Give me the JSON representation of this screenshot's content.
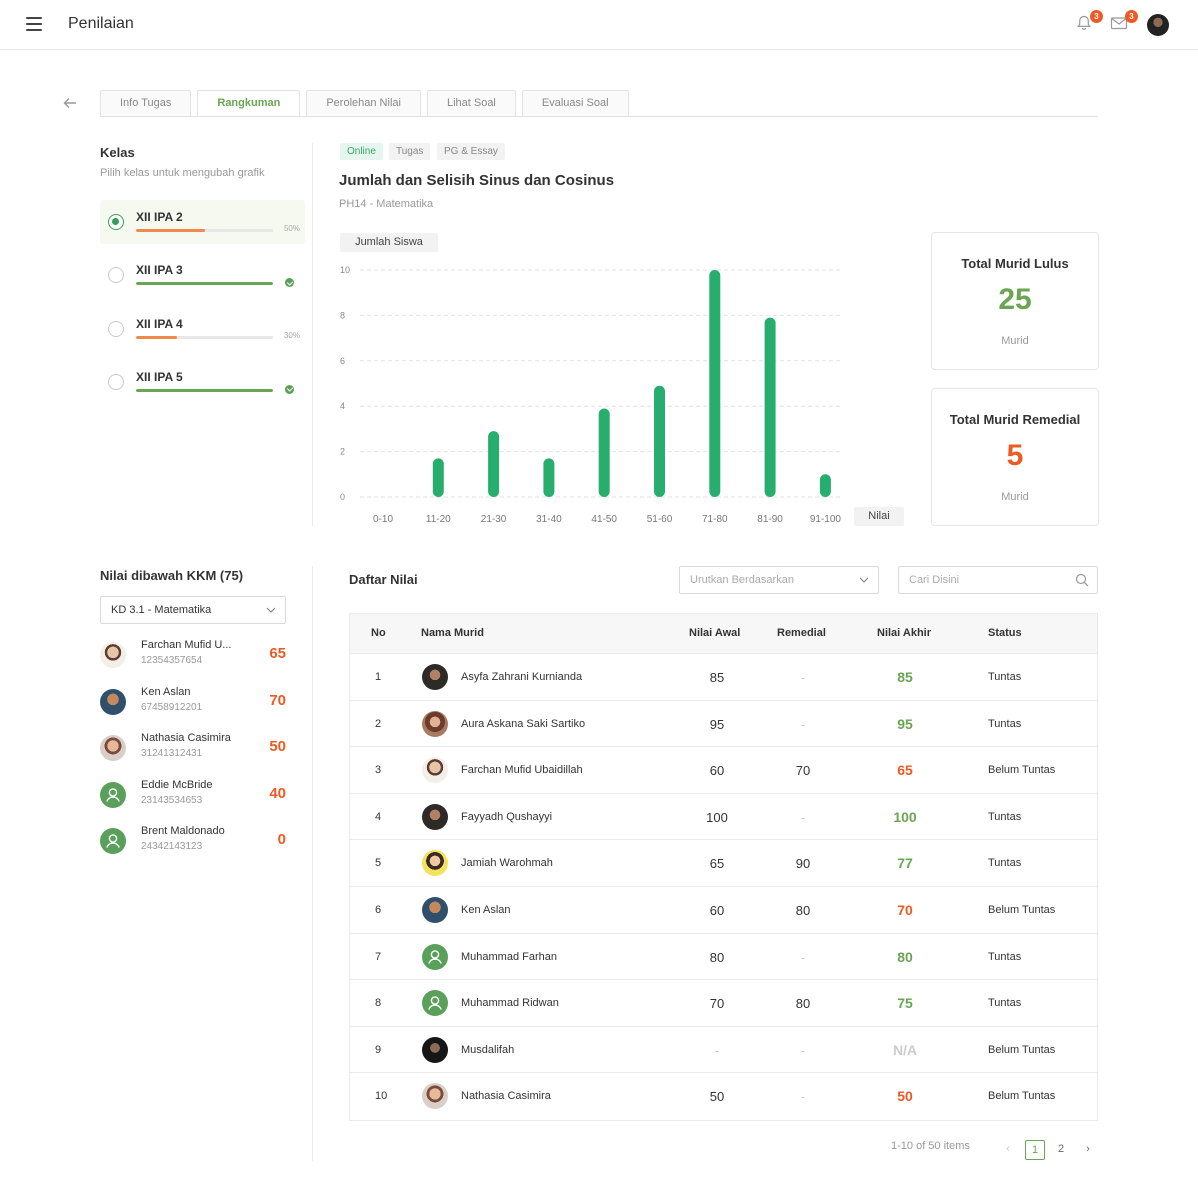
{
  "header": {
    "title": "Penilaian",
    "notif_count": "3",
    "mail_count": "3"
  },
  "tabs": [
    {
      "label": "Info Tugas"
    },
    {
      "label": "Rangkuman"
    },
    {
      "label": "Perolehan Nilai"
    },
    {
      "label": "Lihat Soal"
    },
    {
      "label": "Evaluasi Soal"
    }
  ],
  "kelas": {
    "title": "Kelas",
    "subtitle": "Pilih kelas untuk mengubah grafik",
    "items": [
      {
        "name": "XII IPA 2",
        "progress": 50,
        "pct_label": "50%",
        "color": "#f08a4b",
        "done": false,
        "selected": true
      },
      {
        "name": "XII IPA 3",
        "progress": 100,
        "pct_label": "",
        "color": "#6aa553",
        "done": true,
        "selected": false
      },
      {
        "name": "XII IPA 4",
        "progress": 30,
        "pct_label": "30%",
        "color": "#f08a4b",
        "done": false,
        "selected": false
      },
      {
        "name": "XII IPA 5",
        "progress": 100,
        "pct_label": "",
        "color": "#6aa553",
        "done": true,
        "selected": false
      }
    ]
  },
  "assignment": {
    "chips": [
      "Online",
      "Tugas",
      "PG & Essay"
    ],
    "title": "Jumlah dan Selisih Sinus dan Cosinus",
    "subtitle": "PH14 - Matematika"
  },
  "chart_data": {
    "type": "bar",
    "categories": [
      "0-10",
      "11-20",
      "21-30",
      "31-40",
      "41-50",
      "51-60",
      "71-80",
      "81-90",
      "91-100"
    ],
    "values": [
      0,
      1.7,
      2.9,
      1.7,
      3.9,
      4.9,
      10,
      7.9,
      1
    ],
    "ylabel": "Jumlah Siswa",
    "xlabel": "Nilai",
    "yticks": [
      0,
      2,
      4,
      6,
      8,
      10
    ],
    "ylim": [
      0,
      10
    ],
    "grid": true,
    "bar_color": "#27ae6e"
  },
  "stats": {
    "lulus": {
      "title": "Total Murid Lulus",
      "value": "25",
      "unit": "Murid",
      "color": "#6aa553"
    },
    "remedial": {
      "title": "Total Murid Remedial",
      "value": "5",
      "unit": "Murid",
      "color": "#ee5a24"
    }
  },
  "kkm": {
    "title": "Nilai dibawah KKM (75)",
    "select_value": "KD 3.1 - Matematika",
    "items": [
      {
        "name": "Farchan Mufid U...",
        "id": "12354357654",
        "score": "65",
        "avatar": "photo-light"
      },
      {
        "name": "Ken Aslan",
        "id": "67458912201",
        "score": "70",
        "avatar": "photo-blue"
      },
      {
        "name": "Nathasia Casimira",
        "id": "31241312431",
        "score": "50",
        "avatar": "photo-glasses"
      },
      {
        "name": "Eddie McBride",
        "id": "23143534653",
        "score": "40",
        "avatar": "default"
      },
      {
        "name": "Brent Maldonado",
        "id": "24342143123",
        "score": "0",
        "avatar": "default"
      }
    ]
  },
  "table": {
    "title": "Daftar Nilai",
    "sort_placeholder": "Urutkan Berdasarkan",
    "search_placeholder": "Cari Disini",
    "headers": {
      "no": "No",
      "nama": "Nama Murid",
      "awal": "Nilai Awal",
      "remedial": "Remedial",
      "akhir": "Nilai Akhir",
      "status": "Status"
    },
    "rows": [
      {
        "no": "1",
        "nama": "Asyfa Zahrani Kurnianda",
        "awal": "85",
        "remedial": "-",
        "akhir": "85",
        "status": "Tuntas",
        "avatar": "photo-dark"
      },
      {
        "no": "2",
        "nama": "Aura Askana Saki Sartiko",
        "awal": "95",
        "remedial": "-",
        "akhir": "95",
        "status": "Tuntas",
        "avatar": "photo-brown"
      },
      {
        "no": "3",
        "nama": "Farchan Mufid Ubaidillah",
        "awal": "60",
        "remedial": "70",
        "akhir": "65",
        "status": "Belum Tuntas",
        "avatar": "photo-light"
      },
      {
        "no": "4",
        "nama": "Fayyadh Qushayyi",
        "awal": "100",
        "remedial": "-",
        "akhir": "100",
        "status": "Tuntas",
        "avatar": "photo-dark"
      },
      {
        "no": "5",
        "nama": "Jamiah Warohmah",
        "awal": "65",
        "remedial": "90",
        "akhir": "77",
        "status": "Tuntas",
        "avatar": "photo-yellow"
      },
      {
        "no": "6",
        "nama": "Ken Aslan",
        "awal": "60",
        "remedial": "80",
        "akhir": "70",
        "status": "Belum Tuntas",
        "avatar": "photo-blue"
      },
      {
        "no": "7",
        "nama": "Muhammad Farhan",
        "awal": "80",
        "remedial": "-",
        "akhir": "80",
        "status": "Tuntas",
        "avatar": "default"
      },
      {
        "no": "8",
        "nama": "Muhammad Ridwan",
        "awal": "70",
        "remedial": "80",
        "akhir": "75",
        "status": "Tuntas",
        "avatar": "default"
      },
      {
        "no": "9",
        "nama": "Musdalifah",
        "awal": "-",
        "remedial": "-",
        "akhir": "N/A",
        "status": "Belum Tuntas",
        "avatar": "photo-black"
      },
      {
        "no": "10",
        "nama": "Nathasia Casimira",
        "awal": "50",
        "remedial": "-",
        "akhir": "50",
        "status": "Belum Tuntas",
        "avatar": "photo-glasses"
      }
    ],
    "pagination": {
      "summary": "1-10 of 50 items",
      "pages": [
        "1",
        "2"
      ],
      "current": "1"
    }
  },
  "colors": {
    "pass": "#6aa553",
    "fail": "#ee5a24",
    "na": "#cccccc"
  }
}
